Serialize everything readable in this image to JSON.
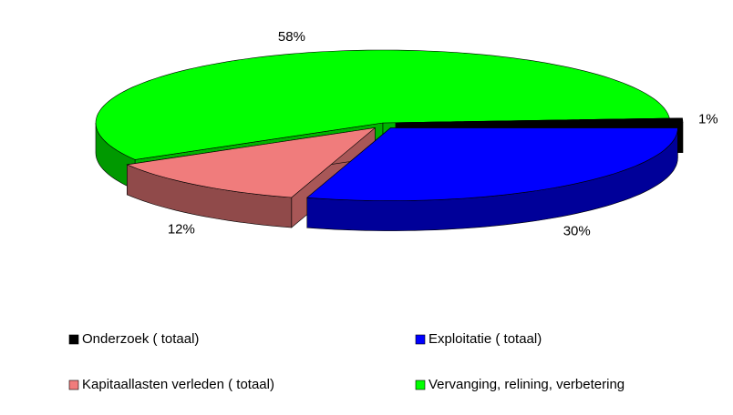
{
  "chart_data": {
    "type": "pie",
    "categories": [
      "Onderzoek ( totaal)",
      "Exploitatie ( totaal)",
      "Kapitaallasten verleden ( totaal)",
      "Vervanging, relining, verbetering"
    ],
    "values": [
      1,
      30,
      12,
      58
    ],
    "value_labels": [
      "1%",
      "30%",
      "12%",
      "58%"
    ],
    "colors": [
      "#000000",
      "#0000ff",
      "#f07c7c",
      "#00ff00"
    ],
    "legend": "bottom"
  }
}
